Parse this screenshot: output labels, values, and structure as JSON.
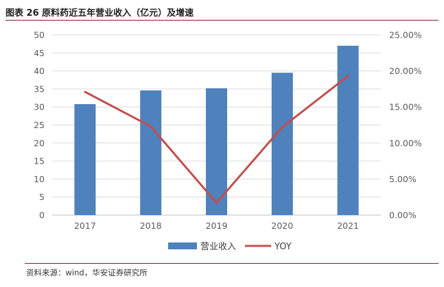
{
  "figure": {
    "title": "图表 26   原料药近五年营业收入（亿元）及增速",
    "source": "资料来源：wind，华安证券研究所"
  },
  "chart_data": {
    "type": "bar",
    "categories": [
      "2017",
      "2018",
      "2019",
      "2020",
      "2021"
    ],
    "series": [
      {
        "name": "营业收入",
        "type": "bar",
        "axis": "left",
        "color": "#4f81bd",
        "values": [
          30.8,
          34.6,
          35.2,
          39.5,
          47.0
        ]
      },
      {
        "name": "YOY",
        "type": "line",
        "axis": "right",
        "color": "#c0504d",
        "values": [
          0.171,
          0.123,
          0.017,
          0.122,
          0.193
        ]
      }
    ],
    "y_left": {
      "min": 0,
      "max": 50,
      "step": 5,
      "ticks": [
        "0",
        "5",
        "10",
        "15",
        "20",
        "25",
        "30",
        "35",
        "40",
        "45",
        "50"
      ]
    },
    "y_right": {
      "min": 0,
      "max": 0.25,
      "step": 0.05,
      "ticks": [
        "0.00%",
        "5.00%",
        "10.00%",
        "15.00%",
        "20.00%",
        "25.00%"
      ]
    },
    "grid": true,
    "legend": "bottom-center"
  }
}
